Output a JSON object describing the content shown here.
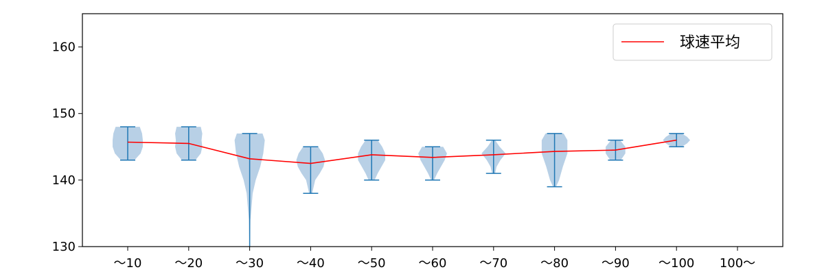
{
  "chart_data": {
    "type": "violin",
    "categories": [
      "～10",
      "～20",
      "～30",
      "～40",
      "～50",
      "～60",
      "～70",
      "～80",
      "～90",
      "～100",
      "100～"
    ],
    "ylim": [
      130,
      165
    ],
    "yticks": [
      130,
      140,
      150,
      160
    ],
    "grid": false,
    "legend_position": "top-right",
    "colors": {
      "violin_fill": "#b8d0e6",
      "whisker": "#1f77b4",
      "mean_line": "#ff0000"
    },
    "violins": [
      {
        "category": "～10",
        "min": 143,
        "max": 148,
        "profile": [
          [
            143,
            0.45
          ],
          [
            144,
            0.85
          ],
          [
            145,
            1.0
          ],
          [
            146,
            1.0
          ],
          [
            147,
            0.95
          ],
          [
            148,
            0.8
          ]
        ]
      },
      {
        "category": "～20",
        "min": 143,
        "max": 148,
        "profile": [
          [
            143,
            0.45
          ],
          [
            144,
            0.8
          ],
          [
            145,
            0.9
          ],
          [
            146,
            0.85
          ],
          [
            147,
            0.9
          ],
          [
            148,
            0.8
          ]
        ]
      },
      {
        "category": "～30",
        "min": 130,
        "max": 147,
        "profile": [
          [
            130,
            0.02
          ],
          [
            134,
            0.05
          ],
          [
            138,
            0.2
          ],
          [
            140,
            0.4
          ],
          [
            142,
            0.7
          ],
          [
            144,
            0.9
          ],
          [
            146,
            1.0
          ],
          [
            147,
            0.85
          ]
        ]
      },
      {
        "category": "～40",
        "min": 138,
        "max": 145,
        "profile": [
          [
            138,
            0.1
          ],
          [
            140,
            0.3
          ],
          [
            141,
            0.6
          ],
          [
            142,
            0.85
          ],
          [
            143,
            0.95
          ],
          [
            144,
            0.8
          ],
          [
            145,
            0.5
          ]
        ]
      },
      {
        "category": "～50",
        "min": 140,
        "max": 146,
        "profile": [
          [
            140,
            0.2
          ],
          [
            141,
            0.4
          ],
          [
            142,
            0.65
          ],
          [
            143,
            0.9
          ],
          [
            144,
            0.9
          ],
          [
            145,
            0.7
          ],
          [
            146,
            0.4
          ]
        ]
      },
      {
        "category": "～60",
        "min": 140,
        "max": 145,
        "profile": [
          [
            140,
            0.1
          ],
          [
            141,
            0.3
          ],
          [
            142,
            0.55
          ],
          [
            143,
            0.8
          ],
          [
            144,
            0.95
          ],
          [
            145,
            0.7
          ]
        ]
      },
      {
        "category": "～70",
        "min": 141,
        "max": 146,
        "profile": [
          [
            141,
            0.1
          ],
          [
            142,
            0.2
          ],
          [
            143,
            0.45
          ],
          [
            144,
            0.8
          ],
          [
            145,
            0.4
          ],
          [
            146,
            0.1
          ]
        ]
      },
      {
        "category": "～80",
        "min": 139,
        "max": 147,
        "profile": [
          [
            139,
            0.1
          ],
          [
            140,
            0.3
          ],
          [
            142,
            0.55
          ],
          [
            144,
            0.85
          ],
          [
            146,
            0.85
          ],
          [
            147,
            0.6
          ]
        ]
      },
      {
        "category": "～90",
        "min": 143,
        "max": 146,
        "profile": [
          [
            143,
            0.35
          ],
          [
            144,
            0.65
          ],
          [
            145,
            0.65
          ],
          [
            146,
            0.3
          ]
        ]
      },
      {
        "category": "～100",
        "min": 145,
        "max": 147,
        "profile": [
          [
            145,
            0.35
          ],
          [
            145.5,
            0.7
          ],
          [
            146,
            0.9
          ],
          [
            146.5,
            0.7
          ],
          [
            147,
            0.35
          ]
        ]
      }
    ],
    "mean_series": {
      "name": "球速平均",
      "categories": [
        "～10",
        "～20",
        "～30",
        "～40",
        "～50",
        "～60",
        "～70",
        "～80",
        "～90",
        "～100"
      ],
      "values": [
        145.7,
        145.5,
        143.2,
        142.5,
        143.8,
        143.4,
        143.8,
        144.3,
        144.5,
        146.0
      ]
    }
  }
}
